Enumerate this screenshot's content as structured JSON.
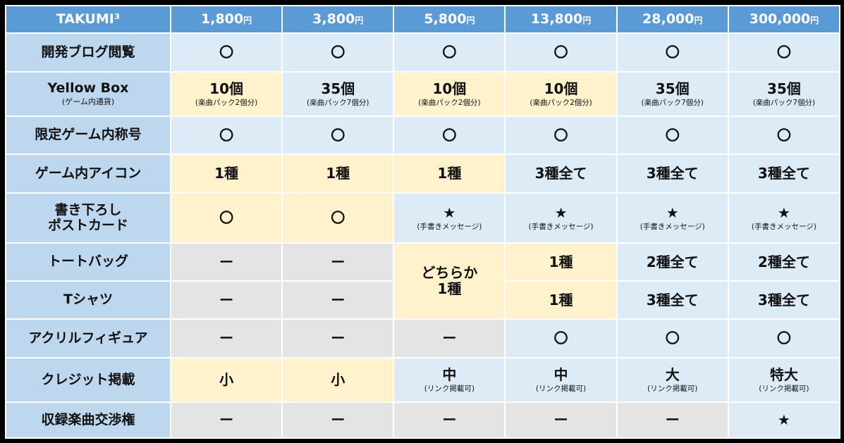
{
  "colors": {
    "header": "#5b9bd5",
    "label": "#bdd7ee",
    "B": "#ddebf7",
    "Y": "#fff2cc",
    "G": "#e4e4e4"
  },
  "header": {
    "title": "TAKUMI³",
    "tiers": [
      {
        "amount": "1,800",
        "unit": "円"
      },
      {
        "amount": "3,800",
        "unit": "円"
      },
      {
        "amount": "5,800",
        "unit": "円"
      },
      {
        "amount": "13,800",
        "unit": "円"
      },
      {
        "amount": "28,000",
        "unit": "円"
      },
      {
        "amount": "300,000",
        "unit": "円"
      }
    ]
  },
  "rows": [
    {
      "label": "開発ブログ閲覧",
      "cells": [
        {
          "main": "〇",
          "bg": "B"
        },
        {
          "main": "〇",
          "bg": "B"
        },
        {
          "main": "〇",
          "bg": "B"
        },
        {
          "main": "〇",
          "bg": "B"
        },
        {
          "main": "〇",
          "bg": "B"
        },
        {
          "main": "〇",
          "bg": "B"
        }
      ]
    },
    {
      "label": "Yellow Box",
      "label_sub": "(ゲーム内通貨)",
      "cells": [
        {
          "main": "10個",
          "sub": "(楽曲パック2個分)",
          "bg": "Y"
        },
        {
          "main": "35個",
          "sub": "(楽曲パック7個分)",
          "bg": "B"
        },
        {
          "main": "10個",
          "sub": "(楽曲パック2個分)",
          "bg": "Y"
        },
        {
          "main": "10個",
          "sub": "(楽曲パック2個分)",
          "bg": "Y"
        },
        {
          "main": "35個",
          "sub": "(楽曲パック7個分)",
          "bg": "B"
        },
        {
          "main": "35個",
          "sub": "(楽曲パック7個分)",
          "bg": "B"
        }
      ]
    },
    {
      "label": "限定ゲーム内称号",
      "cells": [
        {
          "main": "〇",
          "bg": "B"
        },
        {
          "main": "〇",
          "bg": "B"
        },
        {
          "main": "〇",
          "bg": "B"
        },
        {
          "main": "〇",
          "bg": "B"
        },
        {
          "main": "〇",
          "bg": "B"
        },
        {
          "main": "〇",
          "bg": "B"
        }
      ]
    },
    {
      "label": "ゲーム内アイコン",
      "cells": [
        {
          "main": "1種",
          "bg": "Y"
        },
        {
          "main": "1種",
          "bg": "Y"
        },
        {
          "main": "1種",
          "bg": "Y"
        },
        {
          "main": "3種全て",
          "bg": "B"
        },
        {
          "main": "3種全て",
          "bg": "B"
        },
        {
          "main": "3種全て",
          "bg": "B"
        }
      ]
    },
    {
      "label": "書き下ろし\nポストカード",
      "cells": [
        {
          "main": "〇",
          "bg": "Y"
        },
        {
          "main": "〇",
          "bg": "Y"
        },
        {
          "main": "★",
          "sub": "(手書きメッセージ)",
          "bg": "B"
        },
        {
          "main": "★",
          "sub": "(手書きメッセージ)",
          "bg": "B"
        },
        {
          "main": "★",
          "sub": "(手書きメッセージ)",
          "bg": "B"
        },
        {
          "main": "★",
          "sub": "(手書きメッセージ)",
          "bg": "B"
        }
      ]
    },
    {
      "label": "トートバッグ",
      "cells": [
        {
          "main": "ー",
          "bg": "G"
        },
        {
          "main": "ー",
          "bg": "G"
        },
        {
          "main": "どちらか\n1種",
          "bg": "Y",
          "rowspan": 2
        },
        {
          "main": "1種",
          "bg": "Y"
        },
        {
          "main": "2種全て",
          "bg": "B"
        },
        {
          "main": "2種全て",
          "bg": "B"
        }
      ]
    },
    {
      "label": "Tシャツ",
      "cells": [
        {
          "main": "ー",
          "bg": "G"
        },
        {
          "main": "ー",
          "bg": "G"
        },
        {
          "main": "1種",
          "bg": "Y"
        },
        {
          "main": "3種全て",
          "bg": "B"
        },
        {
          "main": "3種全て",
          "bg": "B"
        }
      ]
    },
    {
      "label": "アクリルフィギュア",
      "cells": [
        {
          "main": "ー",
          "bg": "G"
        },
        {
          "main": "ー",
          "bg": "G"
        },
        {
          "main": "ー",
          "bg": "G"
        },
        {
          "main": "〇",
          "bg": "B"
        },
        {
          "main": "〇",
          "bg": "B"
        },
        {
          "main": "〇",
          "bg": "B"
        }
      ]
    },
    {
      "label": "クレジット掲載",
      "cells": [
        {
          "main": "小",
          "bg": "Y"
        },
        {
          "main": "小",
          "bg": "Y"
        },
        {
          "main": "中",
          "sub": "(リンク掲載可)",
          "bg": "B"
        },
        {
          "main": "中",
          "sub": "(リンク掲載可)",
          "bg": "B"
        },
        {
          "main": "大",
          "sub": "(リンク掲載可)",
          "bg": "B"
        },
        {
          "main": "特大",
          "sub": "(リンク掲載可)",
          "bg": "B"
        }
      ]
    },
    {
      "label": "収録楽曲交渉権",
      "cells": [
        {
          "main": "ー",
          "bg": "G"
        },
        {
          "main": "ー",
          "bg": "G"
        },
        {
          "main": "ー",
          "bg": "G"
        },
        {
          "main": "ー",
          "bg": "G"
        },
        {
          "main": "ー",
          "bg": "G"
        },
        {
          "main": "★",
          "bg": "B"
        }
      ]
    }
  ]
}
